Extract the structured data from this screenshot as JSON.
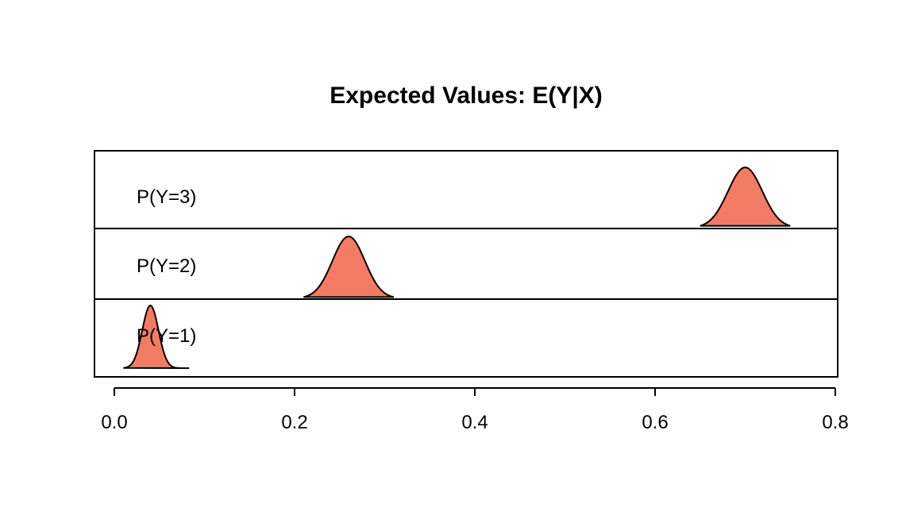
{
  "chart_data": {
    "type": "area",
    "title": "Expected Values: E(Y|X)",
    "xlabel": "",
    "ylabel": "",
    "xlim": [
      0.0,
      0.8
    ],
    "x_ticks": [
      "0.0",
      "0.2",
      "0.4",
      "0.6",
      "0.8"
    ],
    "fill_color": "#f27c63",
    "stroke_color": "#000000",
    "series": [
      {
        "name": "P(Y=1)",
        "mean": 0.04,
        "sd": 0.009,
        "min": 0.01,
        "max": 0.083
      },
      {
        "name": "P(Y=2)",
        "mean": 0.26,
        "sd": 0.018,
        "min": 0.21,
        "max": 0.31
      },
      {
        "name": "P(Y=3)",
        "mean": 0.7,
        "sd": 0.019,
        "min": 0.65,
        "max": 0.75
      }
    ]
  }
}
